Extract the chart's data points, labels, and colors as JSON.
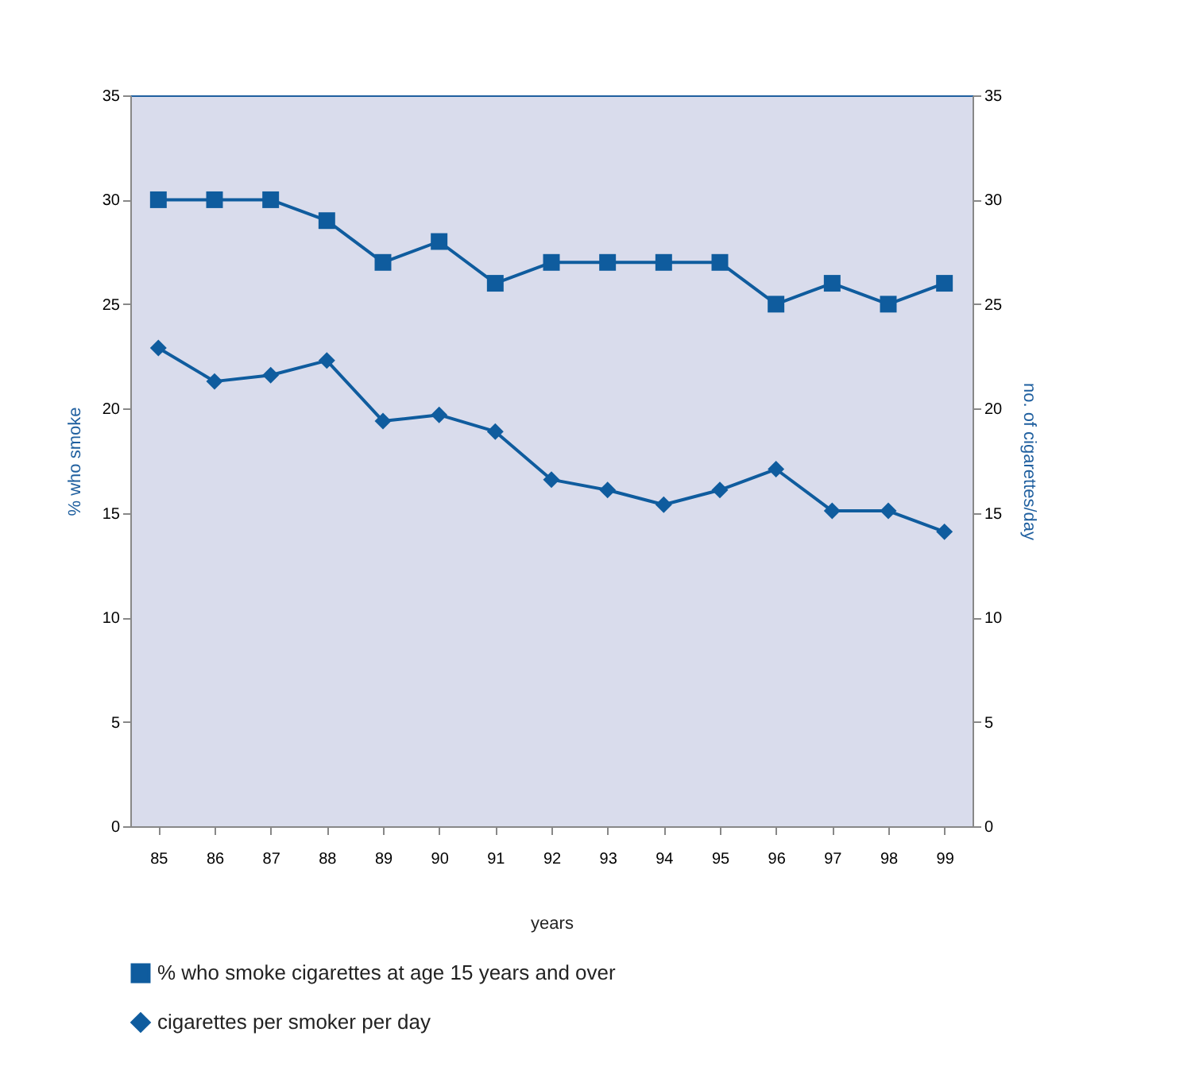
{
  "chart_data": {
    "type": "line",
    "xlabel": "years",
    "ylabel": "% who smoke",
    "y2label": "no. of cigarettes/day",
    "categories": [
      "85",
      "86",
      "87",
      "88",
      "89",
      "90",
      "91",
      "92",
      "93",
      "94",
      "95",
      "96",
      "97",
      "98",
      "99"
    ],
    "series": [
      {
        "name": "% who smoke cigarettes at age 15 years and over",
        "color": "#0f5c9e",
        "marker": "square",
        "values": [
          30,
          30,
          30,
          29,
          27,
          28,
          26,
          27,
          27,
          27,
          27,
          25,
          26,
          25,
          26
        ]
      },
      {
        "name": "cigarettes per smoker per day",
        "color": "#0f5c9e",
        "marker": "diamond",
        "axis": "y2",
        "values": [
          22.9,
          21.3,
          21.6,
          22.3,
          19.4,
          19.7,
          18.9,
          16.6,
          16.1,
          15.4,
          16.1,
          17.1,
          15.1,
          15.1,
          14.1
        ]
      }
    ],
    "ylim": [
      0,
      35
    ],
    "yticks": [
      0,
      5,
      10,
      15,
      20,
      25,
      30,
      35
    ],
    "y2lim": [
      0,
      35
    ],
    "y2ticks": [
      0,
      5,
      10,
      15,
      20,
      25,
      30,
      35
    ],
    "grid": false,
    "legend": "bottom",
    "line_style": "solid"
  }
}
